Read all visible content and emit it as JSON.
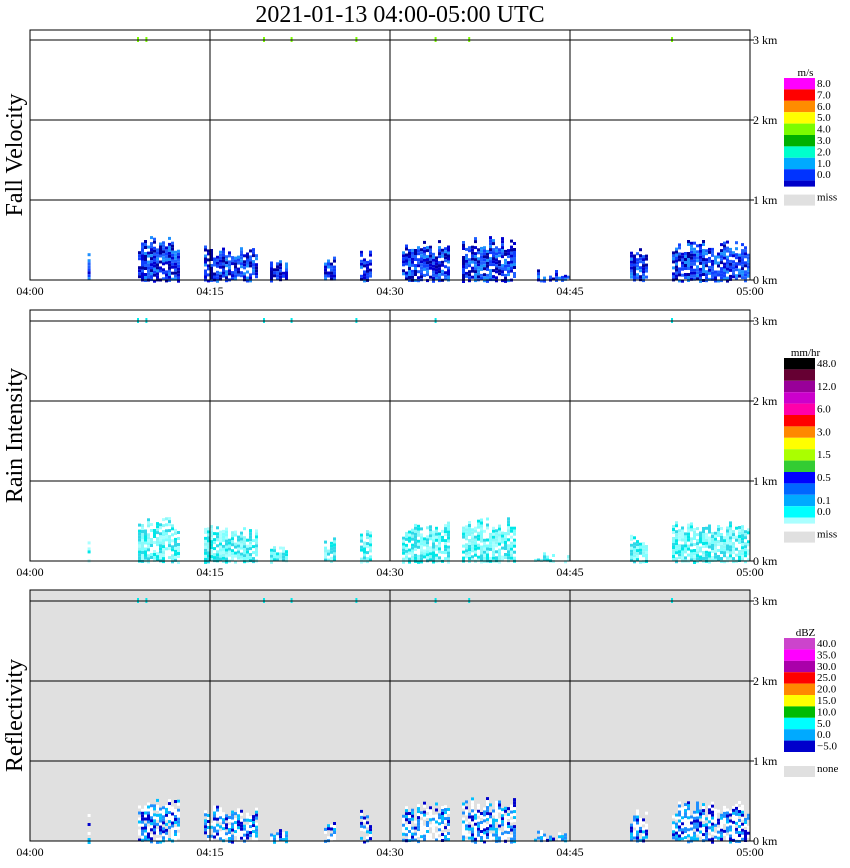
{
  "title": "2021-01-13   04:00-05:00 UTC",
  "time_ticks": [
    "04:00",
    "04:15",
    "04:30",
    "04:45",
    "05:00"
  ],
  "height_ticks": [
    "0 km",
    "1 km",
    "2 km",
    "3 km"
  ],
  "chart_data": [
    {
      "type": "heatmap",
      "title": "Fall Velocity",
      "ylabel": "Fall Velocity",
      "xlim": [
        "04:00",
        "05:00"
      ],
      "ylim": [
        0,
        3
      ],
      "background": "#ffffff",
      "legend": {
        "unit": "m/s",
        "levels": [
          {
            "label": "8.0",
            "color": "#ff00ff"
          },
          {
            "label": "7.0",
            "color": "#ff0000"
          },
          {
            "label": "6.0",
            "color": "#ff8c00"
          },
          {
            "label": "5.0",
            "color": "#ffff00"
          },
          {
            "label": "4.0",
            "color": "#7cfc00"
          },
          {
            "label": "3.0",
            "color": "#00b000"
          },
          {
            "label": "2.0",
            "color": "#00ffcc"
          },
          {
            "label": "1.0",
            "color": "#00aaff"
          },
          {
            "label": "0.0",
            "color": "#0033ff"
          }
        ],
        "bottom_swatch": "#0000c8",
        "miss_label": "miss",
        "miss_color": "#e0e0e0"
      },
      "palette": [
        "#0000d0",
        "#1040ff",
        "#0000a0",
        "#1e90ff",
        "#2060ff"
      ],
      "cells": [
        [
          4.8,
          0.0,
          5.0,
          0.45
        ],
        [
          9.0,
          0.0,
          12.5,
          0.55
        ],
        [
          14.5,
          0.0,
          19.0,
          0.45
        ],
        [
          20.0,
          0.0,
          21.5,
          0.25
        ],
        [
          24.5,
          0.0,
          25.5,
          0.3
        ],
        [
          27.5,
          0.0,
          28.5,
          0.4
        ],
        [
          31.0,
          0.0,
          35.0,
          0.5
        ],
        [
          36.0,
          0.0,
          40.5,
          0.55
        ],
        [
          42.0,
          0.0,
          45.0,
          0.15
        ],
        [
          50.0,
          0.0,
          51.5,
          0.4
        ],
        [
          53.5,
          0.0,
          60.0,
          0.5
        ]
      ],
      "markers": [
        [
          9.0,
          3.0
        ],
        [
          9.7,
          3.0
        ],
        [
          19.5,
          3.0
        ],
        [
          21.8,
          3.0
        ],
        [
          27.2,
          3.0
        ],
        [
          33.8,
          3.0
        ],
        [
          36.6,
          3.0
        ],
        [
          53.5,
          3.0
        ]
      ],
      "marker_color": "#7cfc00"
    },
    {
      "type": "heatmap",
      "title": "Rain Intensity",
      "ylabel": "Rain Intensity",
      "xlim": [
        "04:00",
        "05:00"
      ],
      "ylim": [
        0,
        3
      ],
      "background": "#ffffff",
      "legend": {
        "unit": "mm/hr",
        "levels": [
          {
            "label": "48.0",
            "color": "#000000"
          },
          {
            "label": "",
            "color": "#660033"
          },
          {
            "label": "12.0",
            "color": "#990099"
          },
          {
            "label": "",
            "color": "#cc00cc"
          },
          {
            "label": "6.0",
            "color": "#ff00aa"
          },
          {
            "label": "",
            "color": "#ff0000"
          },
          {
            "label": "3.0",
            "color": "#ff8800"
          },
          {
            "label": "",
            "color": "#ffff00"
          },
          {
            "label": "1.5",
            "color": "#aaff00"
          },
          {
            "label": "",
            "color": "#33cc33"
          },
          {
            "label": "0.5",
            "color": "#0000ff"
          },
          {
            "label": "",
            "color": "#0066ff"
          },
          {
            "label": "0.1",
            "color": "#00aaff"
          },
          {
            "label": "0.0",
            "color": "#00ffff"
          }
        ],
        "bottom_swatch": "#aaffff",
        "miss_label": "miss",
        "miss_color": "#e0e0e0"
      },
      "palette": [
        "#7fffff",
        "#8cf8f8",
        "#00e8e8",
        "#a8ffff",
        "#30d8e8"
      ],
      "cells": [
        [
          4.8,
          0.0,
          5.0,
          0.45
        ],
        [
          9.0,
          0.0,
          12.5,
          0.55
        ],
        [
          14.5,
          0.0,
          19.0,
          0.45
        ],
        [
          20.0,
          0.0,
          21.5,
          0.25
        ],
        [
          24.5,
          0.0,
          25.5,
          0.3
        ],
        [
          27.5,
          0.0,
          28.5,
          0.4
        ],
        [
          31.0,
          0.0,
          35.0,
          0.5
        ],
        [
          36.0,
          0.0,
          40.5,
          0.55
        ],
        [
          42.0,
          0.0,
          45.0,
          0.15
        ],
        [
          50.0,
          0.0,
          51.5,
          0.4
        ],
        [
          53.5,
          0.0,
          60.0,
          0.5
        ]
      ],
      "markers": [
        [
          9.0,
          3.0
        ],
        [
          9.7,
          3.0
        ],
        [
          19.5,
          3.0
        ],
        [
          21.8,
          3.0
        ],
        [
          27.2,
          3.0
        ],
        [
          33.8,
          3.0
        ],
        [
          53.5,
          3.0
        ]
      ],
      "marker_color": "#00e8e8"
    },
    {
      "type": "heatmap",
      "title": "Reflectivity",
      "ylabel": "Reflectivity",
      "xlim": [
        "04:00",
        "05:00"
      ],
      "ylim": [
        0,
        3
      ],
      "background": "#e0e0e0",
      "legend": {
        "unit": "dBZ",
        "levels": [
          {
            "label": "40.0",
            "color": "#cc44cc"
          },
          {
            "label": "35.0",
            "color": "#ff00ff"
          },
          {
            "label": "30.0",
            "color": "#aa00aa"
          },
          {
            "label": "25.0",
            "color": "#ff0000"
          },
          {
            "label": "20.0",
            "color": "#ff8800"
          },
          {
            "label": "15.0",
            "color": "#ffff00"
          },
          {
            "label": "10.0",
            "color": "#00bb00"
          },
          {
            "label": "5.0",
            "color": "#00ffff"
          },
          {
            "label": "0.0",
            "color": "#00aaff"
          },
          {
            "label": "−5.0",
            "color": "#0000cc"
          }
        ],
        "bottom_swatch": "#ffffff",
        "miss_label": "none",
        "miss_color": "#e0e0e0"
      },
      "palette": [
        "#ffffff",
        "#1e90ff",
        "#0000cc",
        "#00bfff",
        "#ffffff"
      ],
      "cells": [
        [
          4.8,
          0.0,
          5.0,
          0.45
        ],
        [
          9.0,
          0.0,
          12.5,
          0.55
        ],
        [
          14.5,
          0.0,
          19.0,
          0.45
        ],
        [
          20.0,
          0.0,
          21.5,
          0.25
        ],
        [
          24.5,
          0.0,
          25.5,
          0.3
        ],
        [
          27.5,
          0.0,
          28.5,
          0.4
        ],
        [
          31.0,
          0.0,
          35.0,
          0.5
        ],
        [
          36.0,
          0.0,
          40.5,
          0.55
        ],
        [
          42.0,
          0.0,
          45.0,
          0.15
        ],
        [
          50.0,
          0.0,
          51.5,
          0.4
        ],
        [
          53.5,
          0.0,
          60.0,
          0.5
        ]
      ],
      "markers": [
        [
          9.0,
          3.0
        ],
        [
          9.7,
          3.0
        ],
        [
          19.5,
          3.0
        ],
        [
          21.8,
          3.0
        ],
        [
          27.2,
          3.0
        ],
        [
          33.8,
          3.0
        ],
        [
          36.6,
          3.0
        ],
        [
          53.5,
          3.0
        ]
      ],
      "marker_color": "#00e8e8"
    }
  ]
}
